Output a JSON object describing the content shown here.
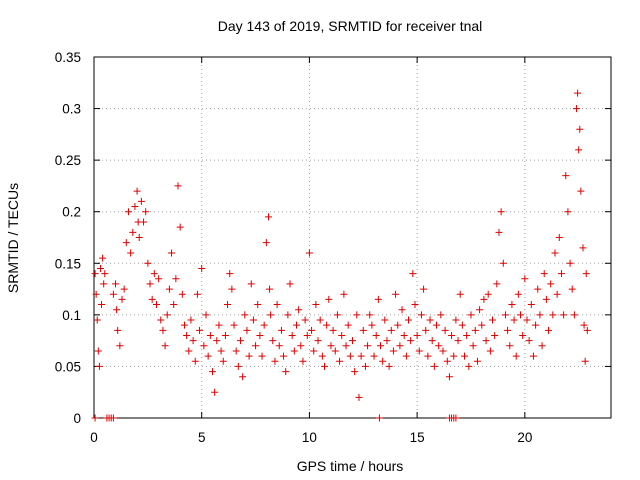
{
  "chart_data": {
    "type": "scatter",
    "title": "Day 143 of 2019, SRMTID for receiver tnal",
    "xlabel": "GPS time / hours",
    "ylabel": "SRMTID / TECUs",
    "xlim": [
      0,
      24
    ],
    "ylim": [
      0,
      0.35
    ],
    "xticks": [
      0,
      5,
      10,
      15,
      20
    ],
    "yticks": [
      0,
      0.05,
      0.1,
      0.15,
      0.2,
      0.25,
      0.3,
      0.35
    ],
    "xtick_labels": [
      "0",
      "5",
      "10",
      "15",
      "20"
    ],
    "ytick_labels": [
      "0",
      "0.05",
      "0.1",
      "0.15",
      "0.2",
      "0.25",
      "0.3",
      "0.35"
    ],
    "grid": true,
    "marker": "plus",
    "color": "#e00000",
    "series": [
      {
        "name": "SRMTID",
        "points": [
          [
            0.05,
            0.14
          ],
          [
            0.1,
            0.12
          ],
          [
            0.15,
            0.095
          ],
          [
            0.2,
            0.065
          ],
          [
            0.25,
            0.05
          ],
          [
            0.3,
            0.145
          ],
          [
            0.35,
            0.11
          ],
          [
            0.4,
            0.155
          ],
          [
            0.45,
            0.13
          ],
          [
            0.5,
            0.14
          ],
          [
            0.9,
            0.12
          ],
          [
            1.0,
            0.13
          ],
          [
            1.05,
            0.105
          ],
          [
            1.1,
            0.085
          ],
          [
            1.2,
            0.07
          ],
          [
            1.3,
            0.115
          ],
          [
            1.4,
            0.125
          ],
          [
            1.5,
            0.17
          ],
          [
            1.6,
            0.2
          ],
          [
            1.7,
            0.16
          ],
          [
            1.8,
            0.18
          ],
          [
            1.9,
            0.205
          ],
          [
            2.0,
            0.22
          ],
          [
            2.05,
            0.19
          ],
          [
            2.1,
            0.175
          ],
          [
            2.2,
            0.21
          ],
          [
            2.3,
            0.19
          ],
          [
            2.4,
            0.2
          ],
          [
            2.5,
            0.15
          ],
          [
            2.6,
            0.13
          ],
          [
            2.7,
            0.115
          ],
          [
            2.8,
            0.14
          ],
          [
            2.9,
            0.11
          ],
          [
            3.0,
            0.135
          ],
          [
            3.1,
            0.095
          ],
          [
            3.2,
            0.085
          ],
          [
            3.3,
            0.07
          ],
          [
            3.4,
            0.1
          ],
          [
            3.5,
            0.125
          ],
          [
            3.6,
            0.16
          ],
          [
            3.7,
            0.11
          ],
          [
            3.8,
            0.135
          ],
          [
            3.9,
            0.225
          ],
          [
            4.0,
            0.185
          ],
          [
            4.1,
            0.12
          ],
          [
            4.2,
            0.09
          ],
          [
            4.3,
            0.08
          ],
          [
            4.4,
            0.065
          ],
          [
            4.5,
            0.095
          ],
          [
            4.6,
            0.075
          ],
          [
            4.7,
            0.055
          ],
          [
            4.8,
            0.12
          ],
          [
            4.9,
            0.085
          ],
          [
            5.0,
            0.145
          ],
          [
            5.1,
            0.07
          ],
          [
            5.2,
            0.1
          ],
          [
            5.3,
            0.06
          ],
          [
            5.4,
            0.08
          ],
          [
            5.5,
            0.045
          ],
          [
            5.6,
            0.025
          ],
          [
            5.7,
            0.075
          ],
          [
            5.8,
            0.09
          ],
          [
            5.9,
            0.065
          ],
          [
            6.0,
            0.055
          ],
          [
            6.1,
            0.08
          ],
          [
            6.2,
            0.11
          ],
          [
            6.3,
            0.14
          ],
          [
            6.4,
            0.125
          ],
          [
            6.5,
            0.09
          ],
          [
            6.6,
            0.065
          ],
          [
            6.7,
            0.05
          ],
          [
            6.8,
            0.075
          ],
          [
            6.9,
            0.04
          ],
          [
            7.0,
            0.1
          ],
          [
            7.1,
            0.085
          ],
          [
            7.2,
            0.06
          ],
          [
            7.3,
            0.13
          ],
          [
            7.4,
            0.095
          ],
          [
            7.5,
            0.07
          ],
          [
            7.6,
            0.11
          ],
          [
            7.7,
            0.08
          ],
          [
            7.8,
            0.06
          ],
          [
            7.9,
            0.09
          ],
          [
            8.0,
            0.17
          ],
          [
            8.1,
            0.195
          ],
          [
            8.15,
            0.125
          ],
          [
            8.2,
            0.1
          ],
          [
            8.3,
            0.075
          ],
          [
            8.4,
            0.055
          ],
          [
            8.5,
            0.11
          ],
          [
            8.6,
            0.07
          ],
          [
            8.7,
            0.085
          ],
          [
            8.8,
            0.06
          ],
          [
            8.9,
            0.045
          ],
          [
            9.0,
            0.1
          ],
          [
            9.1,
            0.13
          ],
          [
            9.2,
            0.08
          ],
          [
            9.3,
            0.065
          ],
          [
            9.4,
            0.09
          ],
          [
            9.5,
            0.105
          ],
          [
            9.6,
            0.07
          ],
          [
            9.7,
            0.055
          ],
          [
            9.8,
            0.095
          ],
          [
            9.9,
            0.08
          ],
          [
            10.0,
            0.16
          ],
          [
            10.1,
            0.085
          ],
          [
            10.2,
            0.065
          ],
          [
            10.3,
            0.11
          ],
          [
            10.4,
            0.075
          ],
          [
            10.5,
            0.095
          ],
          [
            10.6,
            0.06
          ],
          [
            10.7,
            0.05
          ],
          [
            10.8,
            0.09
          ],
          [
            10.9,
            0.115
          ],
          [
            11.0,
            0.07
          ],
          [
            11.1,
            0.085
          ],
          [
            11.2,
            0.065
          ],
          [
            11.3,
            0.1
          ],
          [
            11.4,
            0.055
          ],
          [
            11.5,
            0.08
          ],
          [
            11.6,
            0.12
          ],
          [
            11.7,
            0.07
          ],
          [
            11.8,
            0.09
          ],
          [
            11.9,
            0.06
          ],
          [
            12.0,
            0.075
          ],
          [
            12.1,
            0.045
          ],
          [
            12.2,
            0.1
          ],
          [
            12.3,
            0.02
          ],
          [
            12.4,
            0.06
          ],
          [
            12.5,
            0.085
          ],
          [
            12.6,
            0.05
          ],
          [
            12.7,
            0.07
          ],
          [
            12.8,
            0.1
          ],
          [
            12.9,
            0.09
          ],
          [
            13.0,
            0.06
          ],
          [
            13.1,
            0.08
          ],
          [
            13.2,
            0.115
          ],
          [
            13.3,
            0.07
          ],
          [
            13.4,
            0.055
          ],
          [
            13.5,
            0.095
          ],
          [
            13.6,
            0.075
          ],
          [
            13.7,
            0.05
          ],
          [
            13.8,
            0.085
          ],
          [
            13.9,
            0.065
          ],
          [
            14.0,
            0.12
          ],
          [
            14.1,
            0.09
          ],
          [
            14.2,
            0.07
          ],
          [
            14.3,
            0.105
          ],
          [
            14.4,
            0.08
          ],
          [
            14.5,
            0.06
          ],
          [
            14.6,
            0.095
          ],
          [
            14.7,
            0.075
          ],
          [
            14.8,
            0.14
          ],
          [
            14.9,
            0.11
          ],
          [
            15.0,
            0.08
          ],
          [
            15.1,
            0.065
          ],
          [
            15.2,
            0.1
          ],
          [
            15.3,
            0.125
          ],
          [
            15.4,
            0.085
          ],
          [
            15.5,
            0.06
          ],
          [
            15.6,
            0.095
          ],
          [
            15.7,
            0.075
          ],
          [
            15.8,
            0.05
          ],
          [
            15.9,
            0.09
          ],
          [
            16.0,
            0.07
          ],
          [
            16.1,
            0.1
          ],
          [
            16.2,
            0.065
          ],
          [
            16.3,
            0.085
          ],
          [
            16.4,
            0.055
          ],
          [
            16.5,
            0.04
          ],
          [
            16.6,
            0.08
          ],
          [
            16.7,
            0.06
          ],
          [
            16.8,
            0.095
          ],
          [
            16.9,
            0.075
          ],
          [
            17.0,
            0.12
          ],
          [
            17.1,
            0.09
          ],
          [
            17.2,
            0.06
          ],
          [
            17.3,
            0.08
          ],
          [
            17.4,
            0.05
          ],
          [
            17.5,
            0.1
          ],
          [
            17.6,
            0.07
          ],
          [
            17.7,
            0.085
          ],
          [
            17.8,
            0.055
          ],
          [
            17.9,
            0.105
          ],
          [
            18.0,
            0.09
          ],
          [
            18.1,
            0.115
          ],
          [
            18.2,
            0.075
          ],
          [
            18.3,
            0.12
          ],
          [
            18.4,
            0.065
          ],
          [
            18.5,
            0.095
          ],
          [
            18.6,
            0.08
          ],
          [
            18.7,
            0.13
          ],
          [
            18.8,
            0.18
          ],
          [
            18.9,
            0.2
          ],
          [
            19.0,
            0.15
          ],
          [
            19.1,
            0.1
          ],
          [
            19.2,
            0.085
          ],
          [
            19.3,
            0.07
          ],
          [
            19.4,
            0.11
          ],
          [
            19.5,
            0.095
          ],
          [
            19.6,
            0.06
          ],
          [
            19.7,
            0.12
          ],
          [
            19.8,
            0.1
          ],
          [
            19.9,
            0.08
          ],
          [
            20.0,
            0.135
          ],
          [
            20.1,
            0.095
          ],
          [
            20.2,
            0.075
          ],
          [
            20.3,
            0.11
          ],
          [
            20.4,
            0.06
          ],
          [
            20.5,
            0.09
          ],
          [
            20.6,
            0.125
          ],
          [
            20.7,
            0.1
          ],
          [
            20.8,
            0.07
          ],
          [
            20.9,
            0.14
          ],
          [
            21.0,
            0.115
          ],
          [
            21.1,
            0.085
          ],
          [
            21.2,
            0.13
          ],
          [
            21.3,
            0.1
          ],
          [
            21.4,
            0.16
          ],
          [
            21.5,
            0.12
          ],
          [
            21.6,
            0.175
          ],
          [
            21.7,
            0.14
          ],
          [
            21.8,
            0.1
          ],
          [
            21.9,
            0.235
          ],
          [
            22.0,
            0.2
          ],
          [
            22.1,
            0.15
          ],
          [
            22.2,
            0.125
          ],
          [
            22.3,
            0.1
          ],
          [
            22.4,
            0.3
          ],
          [
            22.45,
            0.315
          ],
          [
            22.5,
            0.26
          ],
          [
            22.55,
            0.28
          ],
          [
            22.6,
            0.22
          ],
          [
            22.7,
            0.165
          ],
          [
            22.75,
            0.09
          ],
          [
            22.8,
            0.055
          ],
          [
            22.85,
            0.14
          ],
          [
            22.9,
            0.085
          ]
        ]
      }
    ],
    "zero_markers_x": [
      0.05,
      0.6,
      0.7,
      0.8,
      0.9,
      13.25,
      16.5,
      16.6,
      16.7,
      16.8
    ]
  }
}
